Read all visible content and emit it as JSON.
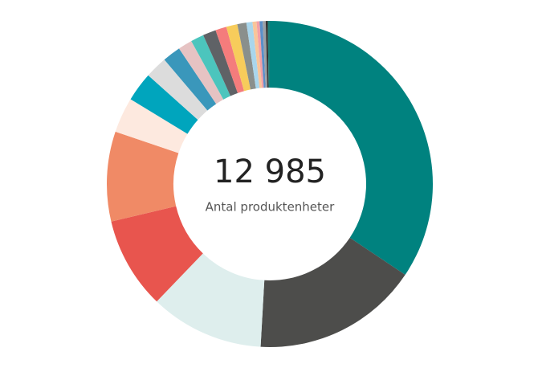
{
  "chart_data": {
    "type": "donut",
    "center_value": "12 985",
    "center_label": "Antal produktenheter",
    "values": [
      34.4,
      16.5,
      11.3,
      9.1,
      8.9,
      3.5,
      2.9,
      2.2,
      1.8,
      1.4,
      1.3,
      1.3,
      1.1,
      1.1,
      0.9,
      0.6,
      0.4,
      0.3,
      0.3,
      0.3,
      0.2,
      0.2
    ],
    "colors": [
      "#00827f",
      "#4d4d4b",
      "#deeeed",
      "#e8554e",
      "#f08a66",
      "#fde9df",
      "#00a5bd",
      "#dcdcdc",
      "#3a97bb",
      "#e6c3c3",
      "#4cc5bd",
      "#5f6266",
      "#f47c7c",
      "#f7cc5b",
      "#8a8f8c",
      "#a9d6ec",
      "#f9c59a",
      "#f3a0a6",
      "#5b8fc9",
      "#9aa0a6",
      "#333333",
      "#1b7f7a"
    ]
  }
}
